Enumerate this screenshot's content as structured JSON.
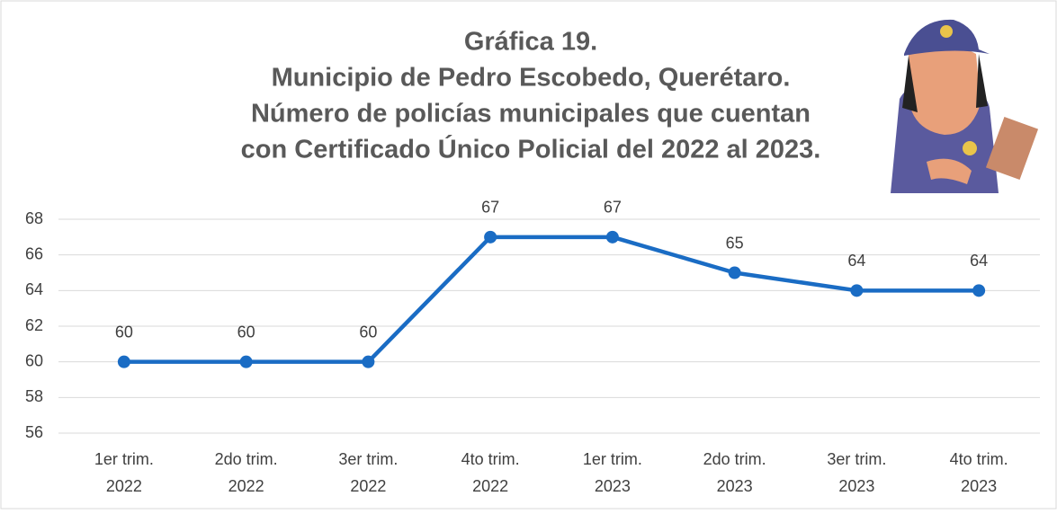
{
  "chart_data": {
    "type": "line",
    "title": [
      "Gráfica 19.",
      "Municipio de Pedro Escobedo, Querétaro.",
      "Número de policías municipales que cuentan",
      "con Certificado Único Policial del 2022 al 2023."
    ],
    "categories": [
      [
        "1er trim.",
        "2022"
      ],
      [
        "2do trim.",
        "2022"
      ],
      [
        "3er trim.",
        "2022"
      ],
      [
        "4to trim.",
        "2022"
      ],
      [
        "1er trim.",
        "2023"
      ],
      [
        "2do trim.",
        "2023"
      ],
      [
        "3er trim.",
        "2023"
      ],
      [
        "4to trim.",
        "2023"
      ]
    ],
    "values": [
      60,
      60,
      60,
      67,
      67,
      65,
      64,
      64
    ],
    "color": "#1a6cc4",
    "ylim": [
      56,
      68
    ],
    "yticks": [
      56,
      58,
      60,
      62,
      64,
      66,
      68
    ],
    "grid": true
  }
}
